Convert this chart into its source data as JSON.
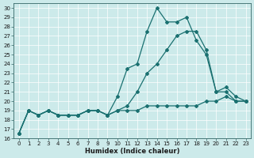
{
  "bg_color": "#cceaea",
  "grid_color": "#b0d8d8",
  "line_color": "#1a7070",
  "xlabel": "Humidex (Indice chaleur)",
  "xlim": [
    -0.5,
    23.5
  ],
  "ylim": [
    16,
    30.5
  ],
  "yticks": [
    16,
    17,
    18,
    19,
    20,
    21,
    22,
    23,
    24,
    25,
    26,
    27,
    28,
    29,
    30
  ],
  "xticks": [
    0,
    1,
    2,
    3,
    4,
    5,
    6,
    7,
    8,
    9,
    10,
    11,
    12,
    13,
    14,
    15,
    16,
    17,
    18,
    19,
    20,
    21,
    22,
    23
  ],
  "line1_x": [
    0,
    1,
    2,
    3,
    4,
    5,
    6,
    7,
    8,
    9,
    10,
    11,
    12,
    13,
    14,
    15,
    16,
    17,
    18,
    19,
    20,
    21,
    22,
    23
  ],
  "line1_y": [
    16.5,
    19.0,
    18.5,
    19.0,
    18.5,
    18.5,
    18.5,
    19.0,
    19.0,
    18.5,
    19.0,
    19.0,
    19.0,
    19.5,
    19.5,
    19.5,
    19.5,
    19.5,
    19.5,
    20.0,
    20.0,
    20.5,
    20.0,
    20.0
  ],
  "line2_x": [
    0,
    1,
    2,
    3,
    4,
    5,
    6,
    7,
    8,
    9,
    10,
    11,
    12,
    13,
    14,
    15,
    16,
    17,
    18,
    19,
    20,
    21,
    22,
    23
  ],
  "line2_y": [
    16.5,
    19.0,
    18.5,
    19.0,
    18.5,
    18.5,
    18.5,
    19.0,
    19.0,
    18.5,
    20.5,
    23.5,
    24.0,
    27.5,
    30.0,
    28.5,
    28.5,
    29.0,
    26.5,
    25.0,
    21.0,
    21.0,
    20.0,
    20.0
  ],
  "line3_x": [
    0,
    1,
    2,
    3,
    4,
    5,
    6,
    7,
    8,
    9,
    10,
    11,
    12,
    13,
    14,
    15,
    16,
    17,
    18,
    19,
    20,
    21,
    22,
    23
  ],
  "line3_y": [
    16.5,
    19.0,
    18.5,
    19.0,
    18.5,
    18.5,
    18.5,
    19.0,
    19.0,
    18.5,
    19.0,
    19.5,
    21.0,
    23.0,
    24.0,
    25.5,
    27.0,
    27.5,
    27.5,
    25.5,
    21.0,
    21.5,
    20.5,
    20.0
  ]
}
